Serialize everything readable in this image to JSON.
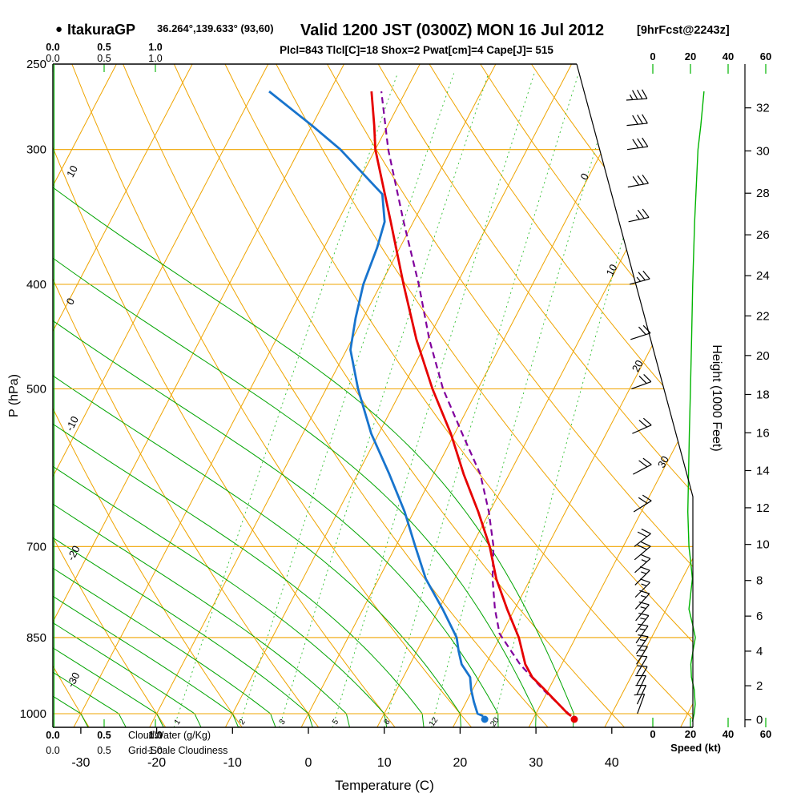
{
  "title": {
    "bullet": "●",
    "station": "ItakuraGP",
    "coords": "36.264°,139.633° (93,60)",
    "valid": "Valid 1200 JST (0300Z) MON 16 Jul 2012",
    "fcst": "[9hrFcst@2243z]",
    "params": "Plcl=843 Tlcl[C]=18 Shox=2 Pwat[cm]=4 Cape[J]= 515"
  },
  "axes": {
    "pressure_label": "P (hPa)",
    "pressure_ticks": [
      250,
      300,
      400,
      500,
      700,
      850,
      1000
    ],
    "temp_label": "Temperature (C)",
    "temp_ticks": [
      -30,
      -20,
      -10,
      0,
      10,
      20,
      30,
      40
    ],
    "height_label": "Height (1000 Feet)",
    "height_ticks": [
      0,
      2,
      4,
      6,
      8,
      10,
      12,
      14,
      16,
      18,
      20,
      22,
      24,
      26,
      28,
      30,
      32
    ],
    "speed_label": "Speed (kt)",
    "speed_ticks": [
      0,
      20,
      40,
      60
    ],
    "cloud_scale_ticks": [
      "0.0",
      "0.5",
      "1.0"
    ],
    "cloudwater_label": "CloudWater (g/Kg)",
    "cloudiness_label": "Grid-Scale Cloudiness",
    "isotherm_labels": [
      0,
      10,
      20,
      30
    ],
    "dry_adiabat_labels": [
      10,
      0,
      -10,
      -20,
      -30
    ],
    "mixing_ratio_values": [
      1,
      2,
      3,
      5,
      8,
      12,
      20
    ]
  },
  "colors": {
    "grid_orange": "#efa400",
    "moist_green": "#00a400",
    "mixing_green": "#2fbf2f",
    "bright_green": "#00b400",
    "temp_red": "#e60000",
    "dewpoint_blue": "#1874cd",
    "parcel_purple": "#80009d",
    "params_magenta": "#cc0066",
    "black": "#000000"
  },
  "chart_data": {
    "type": "line",
    "subtype": "skewt-logp-sounding",
    "pressure_range_hpa": [
      250,
      1030
    ],
    "temp_axis_range_c": [
      -35,
      45
    ],
    "isotherm_step_c": 10,
    "dry_adiabat_step_c": 10,
    "moist_adiabat_surface_temps_c": [
      -40,
      -35,
      -30,
      -25,
      -20,
      -15,
      -10,
      -5,
      0,
      5,
      10,
      15,
      20,
      25,
      30,
      35
    ],
    "surface_temperature_c": 34.8,
    "surface_dewpoint_c": 23.2,
    "temperature_profile": [
      [
        1005,
        34.8
      ],
      [
        1000,
        34.2
      ],
      [
        950,
        29.5
      ],
      [
        925,
        27.0
      ],
      [
        900,
        25.2
      ],
      [
        850,
        22.5
      ],
      [
        800,
        19.0
      ],
      [
        750,
        15.5
      ],
      [
        700,
        12.4
      ],
      [
        650,
        8.5
      ],
      [
        600,
        4.0
      ],
      [
        550,
        -0.5
      ],
      [
        500,
        -6.0
      ],
      [
        450,
        -11.5
      ],
      [
        400,
        -17.0
      ],
      [
        350,
        -23.0
      ],
      [
        300,
        -30.0
      ],
      [
        285,
        -31.8
      ],
      [
        265,
        -34.5
      ]
    ],
    "dewpoint_profile": [
      [
        1005,
        23.2
      ],
      [
        1000,
        22.3
      ],
      [
        975,
        21.0
      ],
      [
        950,
        19.8
      ],
      [
        925,
        18.8
      ],
      [
        900,
        16.8
      ],
      [
        875,
        15.5
      ],
      [
        850,
        14.3
      ],
      [
        800,
        10.5
      ],
      [
        750,
        6.2
      ],
      [
        700,
        2.6
      ],
      [
        650,
        -1.2
      ],
      [
        600,
        -5.8
      ],
      [
        550,
        -11.0
      ],
      [
        500,
        -15.8
      ],
      [
        460,
        -19.5
      ],
      [
        430,
        -21.0
      ],
      [
        400,
        -22.3
      ],
      [
        370,
        -23.0
      ],
      [
        350,
        -23.8
      ],
      [
        330,
        -26.0
      ],
      [
        300,
        -34.6
      ],
      [
        285,
        -40.0
      ],
      [
        265,
        -48.0
      ]
    ],
    "parcel_profile": [
      [
        1005,
        34.8
      ],
      [
        950,
        29.3
      ],
      [
        900,
        24.5
      ],
      [
        843,
        19.7
      ],
      [
        800,
        17.4
      ],
      [
        750,
        15.0
      ],
      [
        700,
        12.9
      ],
      [
        650,
        9.9
      ],
      [
        600,
        6.2
      ],
      [
        550,
        1.0
      ],
      [
        500,
        -4.6
      ],
      [
        450,
        -9.8
      ],
      [
        400,
        -15.0
      ],
      [
        350,
        -21.3
      ],
      [
        300,
        -28.3
      ],
      [
        265,
        -33.2
      ]
    ],
    "wind_barbs": [
      [
        1000,
        10,
        200
      ],
      [
        980,
        10,
        205
      ],
      [
        960,
        12,
        205
      ],
      [
        940,
        13,
        210
      ],
      [
        920,
        14,
        210
      ],
      [
        900,
        15,
        212
      ],
      [
        880,
        15,
        215
      ],
      [
        860,
        15,
        215
      ],
      [
        840,
        16,
        218
      ],
      [
        820,
        17,
        220
      ],
      [
        800,
        18,
        222
      ],
      [
        780,
        18,
        225
      ],
      [
        760,
        19,
        225
      ],
      [
        740,
        19,
        228
      ],
      [
        720,
        20,
        230
      ],
      [
        700,
        20,
        232
      ],
      [
        650,
        20,
        238
      ],
      [
        600,
        20,
        242
      ],
      [
        550,
        20,
        246
      ],
      [
        500,
        21,
        250
      ],
      [
        450,
        23,
        252
      ],
      [
        400,
        25,
        255
      ],
      [
        350,
        28,
        258
      ],
      [
        325,
        30,
        260
      ],
      [
        300,
        32,
        262
      ],
      [
        285,
        34,
        264
      ],
      [
        270,
        35,
        266
      ]
    ],
    "speed_profile_kt": [
      [
        1017,
        21
      ],
      [
        1000,
        22
      ],
      [
        980,
        22.5
      ],
      [
        950,
        22
      ],
      [
        925,
        20.5
      ],
      [
        900,
        20.2
      ],
      [
        875,
        21.3
      ],
      [
        850,
        22.6
      ],
      [
        825,
        21
      ],
      [
        800,
        19.2
      ],
      [
        775,
        20.1
      ],
      [
        750,
        21
      ],
      [
        725,
        20.2
      ],
      [
        700,
        19.2
      ],
      [
        650,
        18.6
      ],
      [
        600,
        19
      ],
      [
        550,
        19.4
      ],
      [
        500,
        20
      ],
      [
        450,
        20.6
      ],
      [
        400,
        21.2
      ],
      [
        350,
        22.2
      ],
      [
        300,
        24
      ],
      [
        285,
        25.5
      ],
      [
        265,
        27.2
      ]
    ]
  }
}
